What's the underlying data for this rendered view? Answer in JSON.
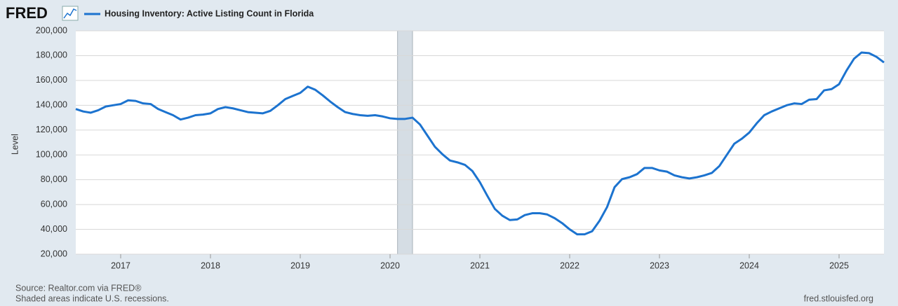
{
  "header": {
    "logo": "FRED"
  },
  "chart_data": {
    "type": "line",
    "title": "Housing Inventory: Active Listing Count in Florida",
    "ylabel": "Level",
    "x": [
      "2016-07",
      "2016-08",
      "2016-09",
      "2016-10",
      "2016-11",
      "2016-12",
      "2017-01",
      "2017-02",
      "2017-03",
      "2017-04",
      "2017-05",
      "2017-06",
      "2017-07",
      "2017-08",
      "2017-09",
      "2017-10",
      "2017-11",
      "2017-12",
      "2018-01",
      "2018-02",
      "2018-03",
      "2018-04",
      "2018-05",
      "2018-06",
      "2018-07",
      "2018-08",
      "2018-09",
      "2018-10",
      "2018-11",
      "2018-12",
      "2019-01",
      "2019-02",
      "2019-03",
      "2019-04",
      "2019-05",
      "2019-06",
      "2019-07",
      "2019-08",
      "2019-09",
      "2019-10",
      "2019-11",
      "2019-12",
      "2020-01",
      "2020-02",
      "2020-03",
      "2020-04",
      "2020-05",
      "2020-06",
      "2020-07",
      "2020-08",
      "2020-09",
      "2020-10",
      "2020-11",
      "2020-12",
      "2021-01",
      "2021-02",
      "2021-03",
      "2021-04",
      "2021-05",
      "2021-06",
      "2021-07",
      "2021-08",
      "2021-09",
      "2021-10",
      "2021-11",
      "2021-12",
      "2022-01",
      "2022-02",
      "2022-03",
      "2022-04",
      "2022-05",
      "2022-06",
      "2022-07",
      "2022-08",
      "2022-09",
      "2022-10",
      "2022-11",
      "2022-12",
      "2023-01",
      "2023-02",
      "2023-03",
      "2023-04",
      "2023-05",
      "2023-06",
      "2023-07",
      "2023-08",
      "2023-09",
      "2023-10",
      "2023-11",
      "2023-12",
      "2024-01",
      "2024-02",
      "2024-03",
      "2024-04",
      "2024-05",
      "2024-06",
      "2024-07",
      "2024-08",
      "2024-09",
      "2024-10",
      "2024-11",
      "2024-12",
      "2025-01",
      "2025-02",
      "2025-03",
      "2025-04",
      "2025-05",
      "2025-06",
      "2025-07"
    ],
    "series": [
      {
        "name": "Housing Inventory: Active Listing Count in Florida",
        "color": "#1c73cf",
        "values": [
          137000,
          135000,
          134000,
          136000,
          139000,
          140000,
          141000,
          144000,
          143500,
          141500,
          141000,
          137000,
          134500,
          132000,
          128500,
          130000,
          132000,
          132500,
          133500,
          137000,
          138500,
          137500,
          136000,
          134500,
          134000,
          133500,
          135500,
          140000,
          145000,
          147500,
          150000,
          155000,
          152500,
          148000,
          143000,
          138500,
          134500,
          133000,
          132000,
          131500,
          132000,
          131000,
          129500,
          129000,
          129000,
          130000,
          124500,
          115500,
          106500,
          100500,
          95500,
          94000,
          92000,
          87000,
          78000,
          67000,
          56500,
          51000,
          47500,
          48000,
          51500,
          53000,
          53000,
          52000,
          49000,
          45000,
          40000,
          36000,
          36000,
          38500,
          47000,
          58000,
          74000,
          80500,
          82000,
          84500,
          89500,
          89500,
          87500,
          86500,
          83500,
          82000,
          81000,
          82000,
          83500,
          85500,
          91000,
          100000,
          109000,
          113000,
          118000,
          125500,
          132000,
          135000,
          137500,
          140000,
          141500,
          141000,
          144500,
          145000,
          152000,
          153000,
          157000,
          168000,
          177500,
          182500,
          182000,
          179000,
          174500
        ]
      }
    ],
    "xlim": [
      "2016-07",
      "2025-07"
    ],
    "xticks": [
      "2017",
      "2018",
      "2019",
      "2020",
      "2021",
      "2022",
      "2023",
      "2024",
      "2025"
    ],
    "ylim": [
      20000,
      200000
    ],
    "yticks": [
      {
        "value": 20000,
        "label": "20,000"
      },
      {
        "value": 40000,
        "label": "40,000"
      },
      {
        "value": 60000,
        "label": "60,000"
      },
      {
        "value": 80000,
        "label": "80,000"
      },
      {
        "value": 100000,
        "label": "100,000"
      },
      {
        "value": 120000,
        "label": "120,000"
      },
      {
        "value": 140000,
        "label": "140,000"
      },
      {
        "value": 160000,
        "label": "160,000"
      },
      {
        "value": 180000,
        "label": "180,000"
      },
      {
        "value": 200000,
        "label": "200,000"
      }
    ],
    "grid": true,
    "recessions": [
      {
        "start": "2020-02",
        "end": "2020-04"
      }
    ]
  },
  "footer": {
    "source": "Source: Realtor.com via FRED®",
    "note": "Shaded areas indicate U.S. recessions.",
    "site": "fred.stlouisfed.org"
  }
}
